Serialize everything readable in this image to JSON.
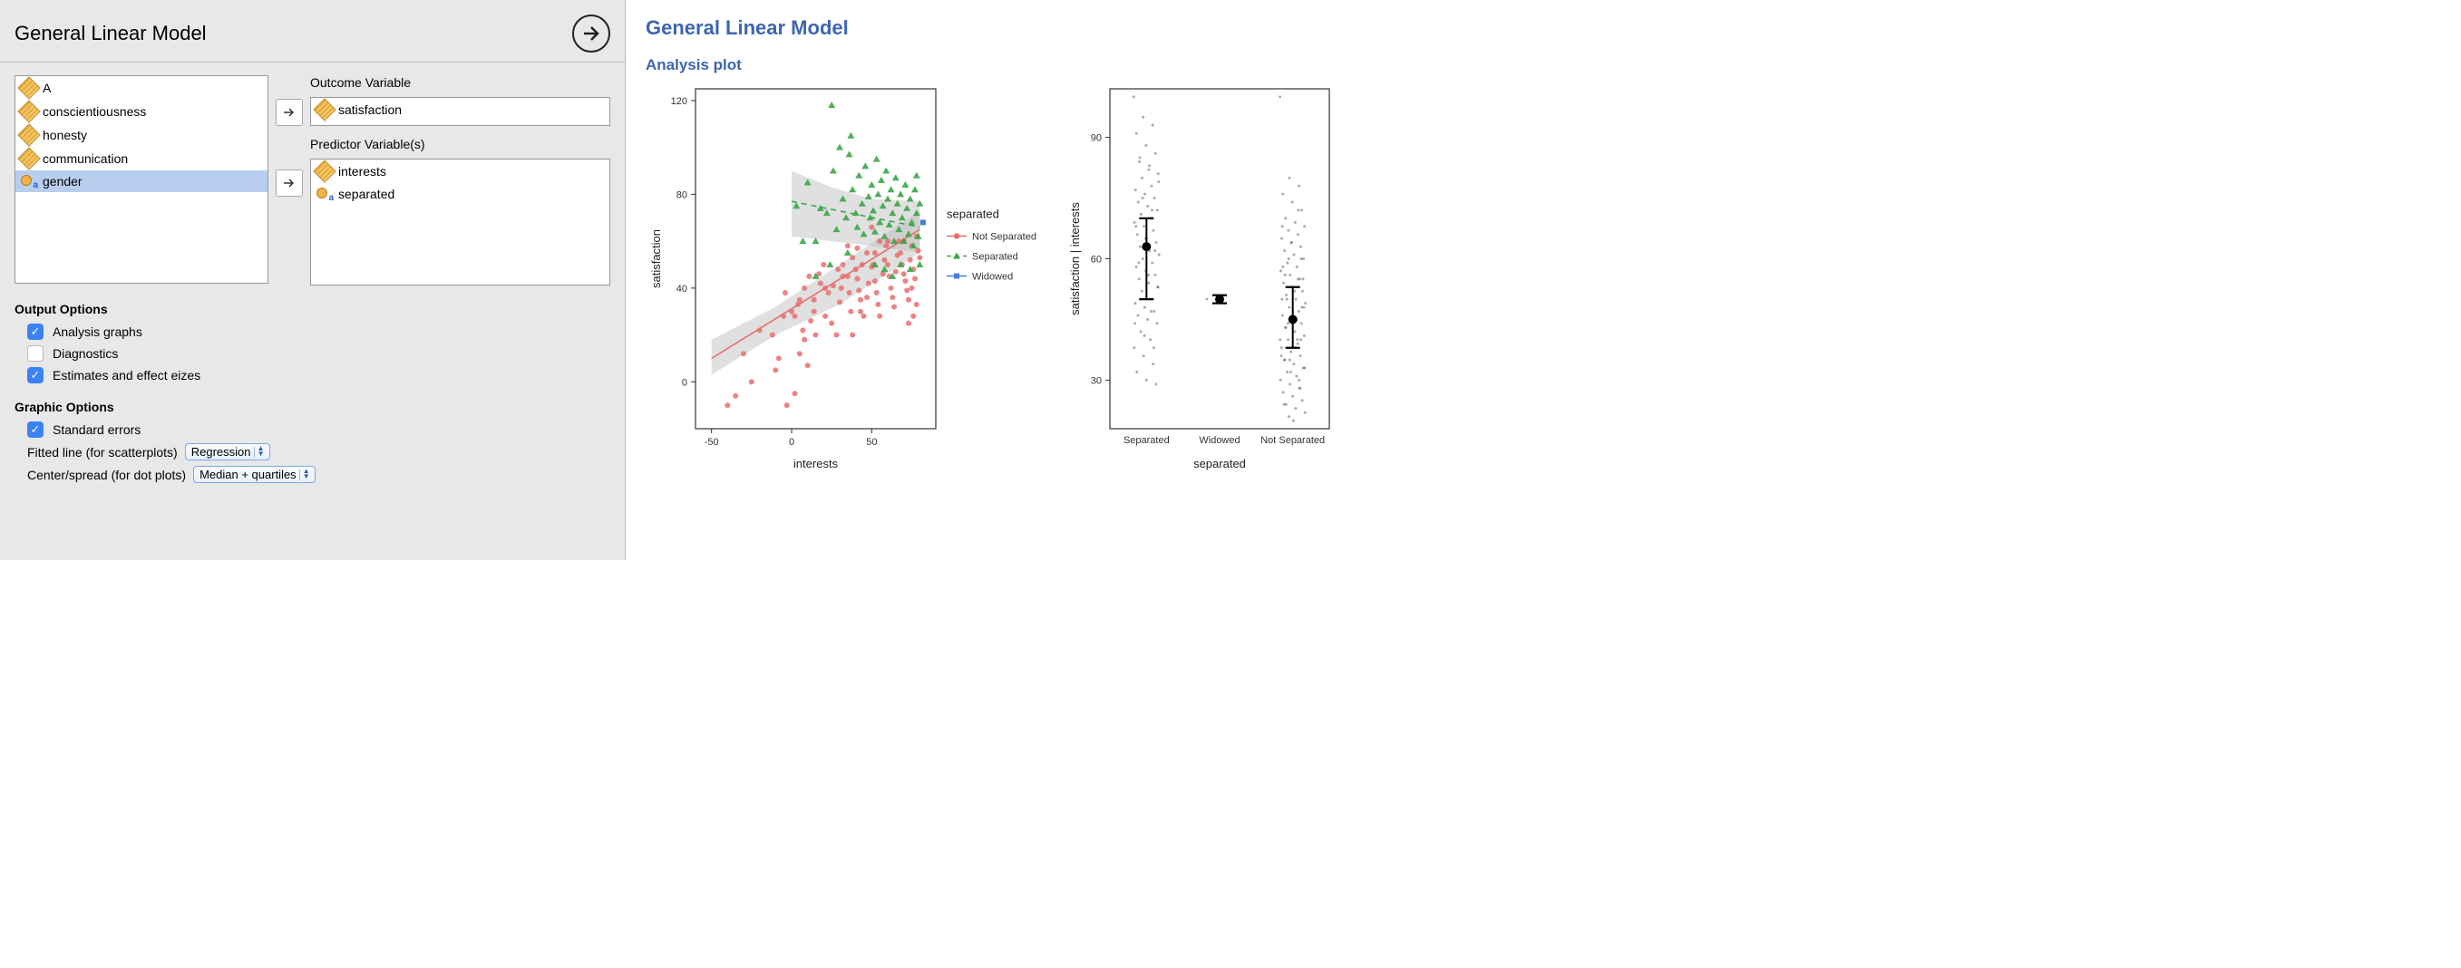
{
  "panel": {
    "title": "General Linear Model",
    "available_vars": [
      {
        "name": "A",
        "type": "scale"
      },
      {
        "name": "conscientiousness",
        "type": "scale"
      },
      {
        "name": "honesty",
        "type": "scale"
      },
      {
        "name": "communication",
        "type": "scale"
      },
      {
        "name": "gender",
        "type": "nominal",
        "selected": true
      }
    ],
    "outcome_label": "Outcome Variable",
    "outcome_var": {
      "name": "satisfaction",
      "type": "scale"
    },
    "predictor_label": "Predictor Variable(s)",
    "predictor_vars": [
      {
        "name": "interests",
        "type": "scale"
      },
      {
        "name": "separated",
        "type": "nominal"
      }
    ],
    "output_options_h": "Output Options",
    "opt_analysis_graphs": {
      "label": "Analysis graphs",
      "checked": true
    },
    "opt_diagnostics": {
      "label": "Diagnostics",
      "checked": false
    },
    "opt_estimates": {
      "label": "Estimates and effect eizes",
      "checked": true
    },
    "graphic_options_h": "Graphic Options",
    "opt_stderr": {
      "label": "Standard errors",
      "checked": true
    },
    "fitted_label": "Fitted line (for scatterplots)",
    "fitted_value": "Regression",
    "spread_label": "Center/spread (for dot plots)",
    "spread_value": "Median + quartiles"
  },
  "output": {
    "title": "General Linear Model",
    "subtitle": "Analysis plot",
    "scatter": {
      "xlabel": "interests",
      "ylabel": "satisfaction",
      "xlim": [
        -60,
        90
      ],
      "ylim": [
        -20,
        125
      ],
      "xticks": [
        -50,
        0,
        50
      ],
      "yticks": [
        0,
        40,
        80,
        120
      ],
      "legend_title": "separated",
      "legend_items": [
        {
          "label": "Not Separated",
          "color": "#e76f6f",
          "marker": "circle",
          "dash": "solid"
        },
        {
          "label": "Separated",
          "color": "#3aa648",
          "marker": "triangle",
          "dash": "dash"
        },
        {
          "label": "Widowed",
          "color": "#4b7bd6",
          "marker": "square",
          "dash": "solid"
        }
      ],
      "groups": {
        "not_sep": {
          "color": "#e76f6f",
          "marker": "circle",
          "line": {
            "x1": -50,
            "y1": 10,
            "x2": 80,
            "y2": 65,
            "dash": "solid"
          },
          "ribbon": [
            [
              -50,
              3,
              18
            ],
            [
              -10,
              20,
              32
            ],
            [
              30,
              33,
              50
            ],
            [
              80,
              55,
              73
            ]
          ],
          "points": [
            [
              -40,
              -10
            ],
            [
              -35,
              -6
            ],
            [
              -25,
              0
            ],
            [
              -30,
              12
            ],
            [
              -10,
              5
            ],
            [
              -8,
              10
            ],
            [
              -3,
              -10
            ],
            [
              2,
              -5
            ],
            [
              5,
              12
            ],
            [
              7,
              22
            ],
            [
              10,
              7
            ],
            [
              12,
              26
            ],
            [
              15,
              20
            ],
            [
              4,
              33
            ],
            [
              8,
              40
            ],
            [
              14,
              35
            ],
            [
              18,
              42
            ],
            [
              21,
              40
            ],
            [
              21,
              28
            ],
            [
              25,
              25
            ],
            [
              28,
              20
            ],
            [
              30,
              34
            ],
            [
              31,
              40
            ],
            [
              32,
              45
            ],
            [
              35,
              45
            ],
            [
              36,
              38
            ],
            [
              37,
              30
            ],
            [
              38,
              20
            ],
            [
              40,
              48
            ],
            [
              41,
              44
            ],
            [
              42,
              39
            ],
            [
              43,
              35
            ],
            [
              43,
              30
            ],
            [
              45,
              28
            ],
            [
              47,
              36
            ],
            [
              48,
              42
            ],
            [
              50,
              49
            ],
            [
              51,
              50
            ],
            [
              52,
              55
            ],
            [
              52,
              43
            ],
            [
              53,
              38
            ],
            [
              54,
              33
            ],
            [
              55,
              28
            ],
            [
              57,
              46
            ],
            [
              58,
              52
            ],
            [
              59,
              58
            ],
            [
              60,
              60
            ],
            [
              60,
              50
            ],
            [
              61,
              45
            ],
            [
              62,
              40
            ],
            [
              63,
              36
            ],
            [
              64,
              32
            ],
            [
              65,
              47
            ],
            [
              66,
              54
            ],
            [
              67,
              60
            ],
            [
              68,
              55
            ],
            [
              69,
              50
            ],
            [
              70,
              46
            ],
            [
              71,
              43
            ],
            [
              72,
              39
            ],
            [
              73,
              35
            ],
            [
              74,
              52
            ],
            [
              75,
              58
            ],
            [
              75,
              40
            ],
            [
              76,
              48
            ],
            [
              77,
              44
            ],
            [
              78,
              62
            ],
            [
              79,
              56
            ],
            [
              80,
              53
            ],
            [
              78,
              33
            ],
            [
              76,
              28
            ],
            [
              73,
              25
            ],
            [
              70,
              60
            ],
            [
              55,
              60
            ],
            [
              50,
              66
            ],
            [
              47,
              55
            ],
            [
              44,
              50
            ],
            [
              41,
              57
            ],
            [
              38,
              53
            ],
            [
              35,
              58
            ],
            [
              32,
              50
            ],
            [
              29,
              48
            ],
            [
              26,
              41
            ],
            [
              23,
              38
            ],
            [
              20,
              50
            ],
            [
              17,
              46
            ],
            [
              14,
              30
            ],
            [
              11,
              45
            ],
            [
              8,
              18
            ],
            [
              5,
              35
            ],
            [
              2,
              28
            ],
            [
              0,
              30
            ],
            [
              -5,
              28
            ],
            [
              -12,
              20
            ],
            [
              -20,
              22
            ],
            [
              -4,
              38
            ]
          ]
        },
        "sep": {
          "color": "#3aa648",
          "marker": "triangle",
          "line": {
            "x1": 0,
            "y1": 77,
            "x2": 80,
            "y2": 66,
            "dash": "dash"
          },
          "ribbon": [
            [
              0,
              62,
              90
            ],
            [
              25,
              60,
              83
            ],
            [
              50,
              58,
              78
            ],
            [
              80,
              55,
              77
            ]
          ],
          "points": [
            [
              3,
              75
            ],
            [
              7,
              60
            ],
            [
              10,
              85
            ],
            [
              15,
              45
            ],
            [
              15,
              60
            ],
            [
              18,
              74
            ],
            [
              22,
              72
            ],
            [
              24,
              50
            ],
            [
              25,
              118
            ],
            [
              26,
              90
            ],
            [
              28,
              65
            ],
            [
              30,
              100
            ],
            [
              32,
              78
            ],
            [
              34,
              70
            ],
            [
              35,
              55
            ],
            [
              36,
              97
            ],
            [
              37,
              105
            ],
            [
              38,
              82
            ],
            [
              40,
              72
            ],
            [
              41,
              66
            ],
            [
              42,
              88
            ],
            [
              44,
              76
            ],
            [
              45,
              63
            ],
            [
              46,
              92
            ],
            [
              48,
              79
            ],
            [
              49,
              70
            ],
            [
              50,
              84
            ],
            [
              51,
              73
            ],
            [
              52,
              64
            ],
            [
              53,
              95
            ],
            [
              54,
              80
            ],
            [
              55,
              68
            ],
            [
              56,
              86
            ],
            [
              57,
              75
            ],
            [
              58,
              62
            ],
            [
              59,
              90
            ],
            [
              60,
              78
            ],
            [
              61,
              67
            ],
            [
              62,
              82
            ],
            [
              63,
              72
            ],
            [
              64,
              60
            ],
            [
              65,
              87
            ],
            [
              66,
              76
            ],
            [
              67,
              65
            ],
            [
              68,
              80
            ],
            [
              69,
              70
            ],
            [
              70,
              60
            ],
            [
              71,
              84
            ],
            [
              72,
              74
            ],
            [
              73,
              63
            ],
            [
              74,
              78
            ],
            [
              75,
              68
            ],
            [
              76,
              58
            ],
            [
              77,
              82
            ],
            [
              78,
              72
            ],
            [
              79,
              62
            ],
            [
              80,
              76
            ],
            [
              78,
              88
            ],
            [
              52,
              50
            ],
            [
              58,
              48
            ],
            [
              63,
              45
            ],
            [
              68,
              50
            ],
            [
              74,
              48
            ],
            [
              80,
              50
            ]
          ]
        },
        "wid": {
          "color": "#4b7bd6",
          "marker": "square",
          "points": [
            [
              82,
              68
            ]
          ]
        }
      }
    },
    "dotplot": {
      "ylabel": "satisfaction | interests",
      "xlabel": "separated",
      "ylim": [
        18,
        102
      ],
      "yticks": [
        30,
        60,
        90
      ],
      "categories": [
        "Separated",
        "Widowed",
        "Not Separated"
      ],
      "summaries": {
        "Separated": {
          "median": 63,
          "q1": 50,
          "q3": 70,
          "jitter": [
            100,
            95,
            93,
            91,
            88,
            86,
            84,
            82,
            81,
            80,
            78,
            77,
            76,
            75,
            74,
            73,
            72,
            71,
            70,
            69,
            68,
            67,
            66,
            65,
            64,
            63,
            62,
            61,
            60,
            59,
            58,
            57,
            56,
            55,
            54,
            53,
            52,
            50,
            49,
            48,
            47,
            46,
            45,
            44,
            42,
            40,
            38,
            36,
            34,
            32,
            30,
            29,
            85,
            83,
            79,
            75,
            72,
            68,
            65,
            62,
            59,
            56,
            53,
            50,
            47,
            44,
            41,
            38
          ]
        },
        "Widowed": {
          "median": 50,
          "q1": 49,
          "q3": 51,
          "jitter": [
            50
          ]
        },
        "Not Separated": {
          "median": 45,
          "q1": 38,
          "q3": 53,
          "jitter": [
            100,
            80,
            78,
            76,
            74,
            72,
            70,
            69,
            68,
            67,
            66,
            65,
            64,
            63,
            62,
            61,
            60,
            59,
            58,
            57,
            56,
            55,
            54,
            53,
            52,
            51,
            50,
            49,
            48,
            47,
            46,
            45,
            44,
            43,
            42,
            41,
            40,
            39,
            38,
            37,
            36,
            35,
            34,
            33,
            32,
            31,
            30,
            29,
            28,
            27,
            26,
            25,
            24,
            23,
            22,
            21,
            72,
            68,
            64,
            60,
            56,
            52,
            48,
            44,
            40,
            36,
            32,
            28,
            24,
            20,
            55,
            50,
            45,
            40,
            35,
            30,
            58,
            53,
            48,
            43,
            38,
            33,
            60,
            55,
            50,
            45,
            40,
            35
          ]
        }
      }
    }
  }
}
